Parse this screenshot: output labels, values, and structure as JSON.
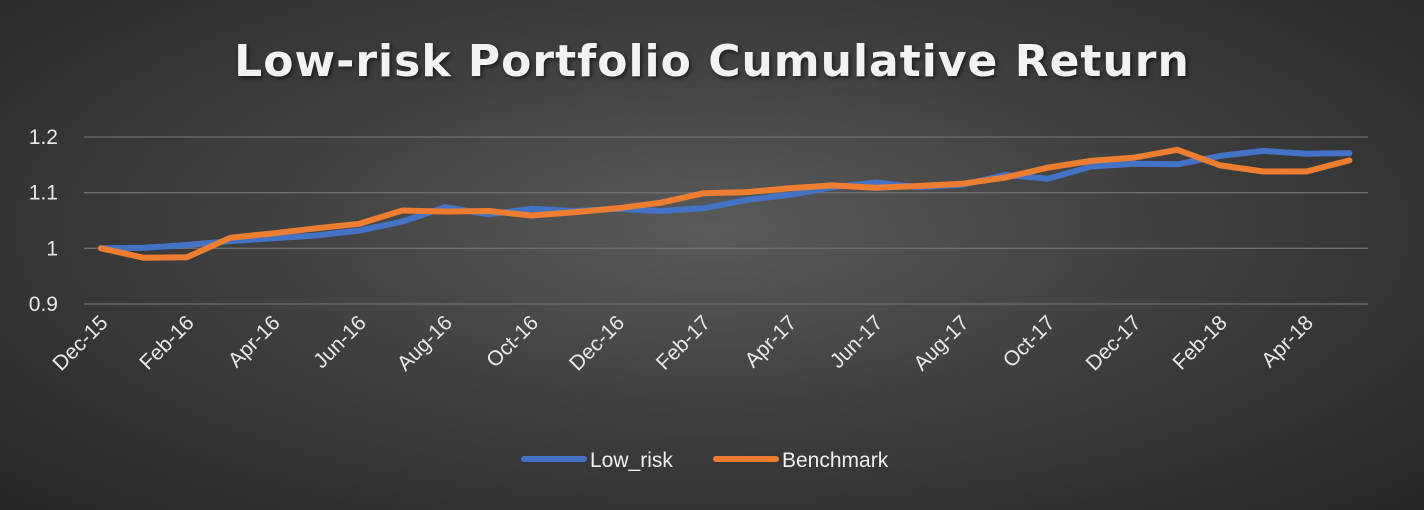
{
  "chart_data": {
    "type": "line",
    "title": "Low-risk Portfolio Cumulative Return",
    "x": [
      "Dec-15",
      "Jan-16",
      "Feb-16",
      "Mar-16",
      "Apr-16",
      "May-16",
      "Jun-16",
      "Jul-16",
      "Aug-16",
      "Sep-16",
      "Oct-16",
      "Nov-16",
      "Dec-16",
      "Jan-17",
      "Feb-17",
      "Mar-17",
      "Apr-17",
      "May-17",
      "Jun-17",
      "Jul-17",
      "Aug-17",
      "Sep-17",
      "Oct-17",
      "Nov-17",
      "Dec-17",
      "Jan-18",
      "Feb-18",
      "Mar-18",
      "Apr-18",
      "May-18"
    ],
    "x_tick_labels": [
      "Dec-15",
      "Feb-16",
      "Apr-16",
      "Jun-16",
      "Aug-16",
      "Oct-16",
      "Dec-16",
      "Feb-17",
      "Apr-17",
      "Jun-17",
      "Aug-17",
      "Oct-17",
      "Dec-17",
      "Feb-18",
      "Apr-18"
    ],
    "y_ticks": [
      "0.9",
      "1",
      "1.1",
      "1.2"
    ],
    "ylim": [
      0.9,
      1.2
    ],
    "grid": true,
    "legend_position": "bottom",
    "series": [
      {
        "name": "Low_risk",
        "color": "#4472C4",
        "values": [
          1.0,
          1.001,
          1.006,
          1.013,
          1.018,
          1.023,
          1.032,
          1.048,
          1.074,
          1.061,
          1.071,
          1.067,
          1.071,
          1.067,
          1.072,
          1.087,
          1.096,
          1.11,
          1.118,
          1.11,
          1.114,
          1.132,
          1.125,
          1.147,
          1.152,
          1.151,
          1.166,
          1.175,
          1.17,
          1.171
        ]
      },
      {
        "name": "Benchmark",
        "color": "#ED7D31",
        "values": [
          1.0,
          0.983,
          0.984,
          1.019,
          1.027,
          1.036,
          1.044,
          1.068,
          1.066,
          1.067,
          1.059,
          1.065,
          1.072,
          1.082,
          1.099,
          1.101,
          1.108,
          1.113,
          1.109,
          1.112,
          1.116,
          1.127,
          1.145,
          1.157,
          1.163,
          1.177,
          1.149,
          1.138,
          1.138,
          1.158
        ]
      }
    ]
  }
}
